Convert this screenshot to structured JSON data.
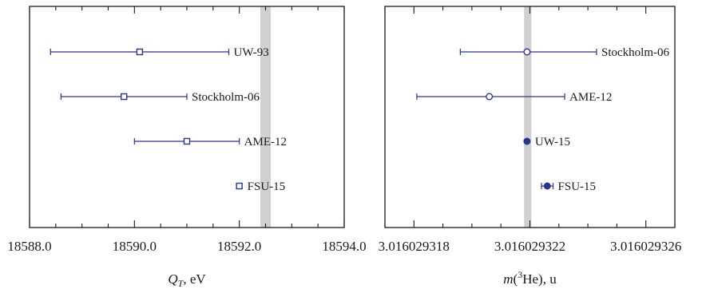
{
  "chart_data": [
    {
      "type": "errorbar",
      "panel": "left",
      "xlabel_symbol": "Q",
      "xlabel_subscript": "T",
      "xlabel_unit": ", eV",
      "xlim": [
        18588.0,
        18594.0
      ],
      "xticks": [
        18588.0,
        18590.0,
        18592.0,
        18594.0
      ],
      "xtick_labels": [
        "18588.0",
        "18590.0",
        "18592.0",
        "18594.0"
      ],
      "band": [
        18592.4,
        18592.6
      ],
      "marker": "open-square",
      "points": [
        {
          "label": "UW-93",
          "value": 18590.1,
          "err_low": 18588.4,
          "err_high": 18591.8
        },
        {
          "label": "Stockholm-06",
          "value": 18589.8,
          "err_low": 18588.6,
          "err_high": 18591.0
        },
        {
          "label": "AME-12",
          "value": 18591.0,
          "err_low": 18590.0,
          "err_high": 18592.0
        },
        {
          "label": "FSU-15",
          "value": 18592.0,
          "err_low": 18591.97,
          "err_high": 18592.03
        }
      ]
    },
    {
      "type": "errorbar",
      "panel": "right",
      "xlabel_prefix": "m",
      "xlabel_sup": "3",
      "xlabel_elem": "He",
      "xlabel_unit": "), u",
      "xlim": [
        3.016029317,
        3.016029327
      ],
      "xticks": [
        3.016029318,
        3.016029322,
        3.016029326
      ],
      "xtick_labels": [
        "3.016029318",
        "3.016029322",
        "3.016029326"
      ],
      "band": [
        3.0160293218,
        3.01602932205
      ],
      "points": [
        {
          "label": "Stockholm-06",
          "value": 3.0160293219,
          "err_low": 3.0160293196,
          "err_high": 3.0160293243,
          "marker": "open-circle"
        },
        {
          "label": "AME-12",
          "value": 3.0160293206,
          "err_low": 3.0160293181,
          "err_high": 3.0160293232,
          "marker": "open-circle"
        },
        {
          "label": "UW-15",
          "value": 3.0160293219,
          "err_low": 3.0160293219,
          "err_high": 3.0160293219,
          "marker": "filled-circle"
        },
        {
          "label": "FSU-15",
          "value": 3.0160293226,
          "err_low": 3.0160293224,
          "err_high": 3.0160293228,
          "marker": "filled-circle"
        }
      ]
    }
  ],
  "colors": {
    "marker": "#2a3590",
    "band": "#d0d0d0",
    "axis": "#1a1a1a"
  }
}
